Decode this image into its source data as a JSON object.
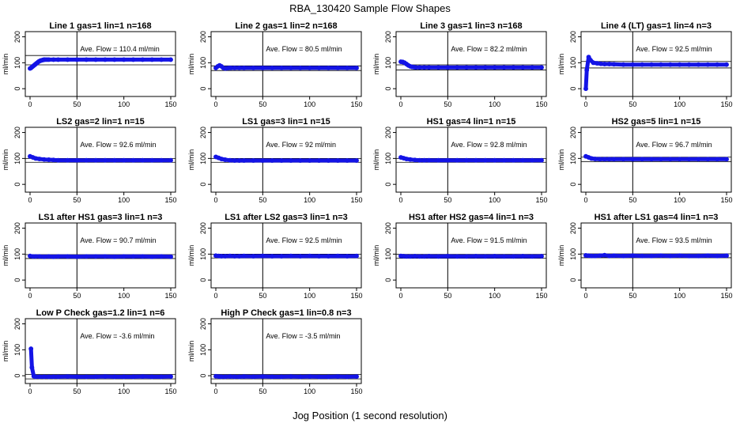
{
  "figure": {
    "title": "RBA_130420  Sample Flow Shapes",
    "xlabel": "Jog Position (1 second resolution)"
  },
  "chart_data": [
    {
      "type": "scatter",
      "title": "Line 1 gas=1 lin=1 n=168",
      "ylabel": "ml/min",
      "xlim": [
        0,
        150
      ],
      "ylim": [
        -30,
        220
      ],
      "xticks": [
        0,
        50,
        100,
        150
      ],
      "yticks": [
        0,
        100,
        200
      ],
      "vline": 50,
      "hlines": [
        92,
        128
      ],
      "annotation": "Ave. Flow =  110.4  ml/min",
      "series": [
        {
          "x": [
            0,
            1,
            2,
            3,
            4,
            5,
            6,
            7,
            8,
            9,
            10,
            11,
            12,
            13,
            14,
            15,
            16,
            18,
            20,
            25,
            30,
            40,
            50,
            60,
            70,
            80,
            90,
            100,
            110,
            120,
            130,
            140,
            150
          ],
          "y": [
            78,
            80,
            83,
            86,
            89,
            92,
            95,
            98,
            101,
            104,
            106,
            108,
            109,
            110,
            111,
            112,
            112,
            112,
            112,
            112,
            112,
            112,
            112,
            112,
            112,
            112,
            112,
            112,
            112,
            112,
            112,
            112,
            112
          ]
        }
      ]
    },
    {
      "type": "scatter",
      "title": "Line 2 gas=1 lin=2 n=168",
      "ylabel": "ml/min",
      "xlim": [
        0,
        150
      ],
      "ylim": [
        -30,
        220
      ],
      "xticks": [
        0,
        50,
        100,
        150
      ],
      "yticks": [
        0,
        100,
        200
      ],
      "vline": 50,
      "hlines": [
        70,
        88
      ],
      "annotation": "Ave. Flow =  80.5  ml/min",
      "series": [
        {
          "x": [
            0,
            2,
            4,
            6,
            8,
            10,
            12,
            14,
            16,
            20,
            25,
            30,
            40,
            50,
            60,
            70,
            80,
            90,
            100,
            110,
            120,
            130,
            140,
            150
          ],
          "y": [
            80,
            86,
            90,
            86,
            80,
            78,
            79,
            80,
            80,
            80,
            80,
            80,
            80,
            80,
            80,
            80,
            80,
            80,
            80,
            80,
            80,
            80,
            80,
            80
          ]
        }
      ]
    },
    {
      "type": "scatter",
      "title": "Line 3 gas=1 lin=3 n=168",
      "ylabel": "ml/min",
      "xlim": [
        0,
        150
      ],
      "ylim": [
        -30,
        220
      ],
      "xticks": [
        0,
        50,
        100,
        150
      ],
      "yticks": [
        0,
        100,
        200
      ],
      "vline": 50,
      "hlines": [
        72,
        92
      ],
      "annotation": "Ave. Flow =  82.2  ml/min",
      "series": [
        {
          "x": [
            0,
            2,
            4,
            6,
            8,
            10,
            12,
            14,
            16,
            20,
            25,
            30,
            40,
            50,
            60,
            70,
            80,
            90,
            100,
            110,
            120,
            130,
            140,
            150
          ],
          "y": [
            104,
            103,
            100,
            95,
            90,
            86,
            84,
            83,
            82,
            82,
            82,
            82,
            82,
            82,
            82,
            82,
            82,
            82,
            82,
            82,
            82,
            82,
            82,
            82
          ]
        }
      ]
    },
    {
      "type": "scatter",
      "title": "Line 4 (LT) gas=1 lin=4 n=3",
      "ylabel": "ml/min",
      "xlim": [
        0,
        150
      ],
      "ylim": [
        -30,
        220
      ],
      "xticks": [
        0,
        50,
        100,
        150
      ],
      "yticks": [
        0,
        100,
        200
      ],
      "vline": 50,
      "hlines": [
        80,
        105
      ],
      "annotation": "Ave. Flow =  92.5  ml/min",
      "series": [
        {
          "x": [
            0,
            1,
            3,
            5,
            8,
            12,
            16,
            20,
            25,
            30,
            40,
            50,
            60,
            70,
            80,
            90,
            100,
            110,
            120,
            130,
            140,
            150
          ],
          "y": [
            0,
            72,
            122,
            110,
            100,
            98,
            96,
            95,
            95,
            94,
            93,
            93,
            93,
            93,
            93,
            93,
            93,
            93,
            93,
            93,
            93,
            93
          ]
        }
      ]
    },
    {
      "type": "scatter",
      "title": "LS2 gas=2 lin=1 n=15",
      "ylabel": "ml/min",
      "xlim": [
        0,
        150
      ],
      "ylim": [
        -30,
        220
      ],
      "xticks": [
        0,
        50,
        100,
        150
      ],
      "yticks": [
        0,
        100,
        200
      ],
      "vline": 50,
      "hlines": [
        85,
        100
      ],
      "annotation": "Ave. Flow =  92.6  ml/min",
      "series": [
        {
          "x": [
            0,
            3,
            6,
            10,
            15,
            20,
            25,
            30,
            40,
            50,
            60,
            70,
            80,
            90,
            100,
            110,
            120,
            130,
            140,
            150
          ],
          "y": [
            108,
            104,
            100,
            98,
            96,
            95,
            94,
            93,
            93,
            93,
            93,
            93,
            93,
            93,
            93,
            93,
            93,
            93,
            93,
            93
          ]
        }
      ]
    },
    {
      "type": "scatter",
      "title": "LS1 gas=3 lin=1 n=15",
      "ylabel": "ml/min",
      "xlim": [
        0,
        150
      ],
      "ylim": [
        -30,
        220
      ],
      "xticks": [
        0,
        50,
        100,
        150
      ],
      "yticks": [
        0,
        100,
        200
      ],
      "vline": 50,
      "hlines": [
        85,
        100
      ],
      "annotation": "Ave. Flow =  92  ml/min",
      "series": [
        {
          "x": [
            0,
            3,
            6,
            10,
            15,
            20,
            25,
            30,
            40,
            50,
            60,
            70,
            80,
            90,
            100,
            110,
            120,
            130,
            140,
            150
          ],
          "y": [
            106,
            102,
            98,
            95,
            93,
            92,
            92,
            92,
            92,
            92,
            92,
            92,
            92,
            92,
            92,
            92,
            92,
            92,
            92,
            92
          ]
        }
      ]
    },
    {
      "type": "scatter",
      "title": "HS1 gas=4 lin=1 n=15",
      "ylabel": "ml/min",
      "xlim": [
        0,
        150
      ],
      "ylim": [
        -30,
        220
      ],
      "xticks": [
        0,
        50,
        100,
        150
      ],
      "yticks": [
        0,
        100,
        200
      ],
      "vline": 50,
      "hlines": [
        85,
        100
      ],
      "annotation": "Ave. Flow =  92.8  ml/min",
      "series": [
        {
          "x": [
            0,
            3,
            6,
            10,
            15,
            20,
            25,
            30,
            40,
            50,
            60,
            70,
            80,
            90,
            100,
            110,
            120,
            130,
            140,
            150
          ],
          "y": [
            104,
            101,
            98,
            96,
            94,
            93,
            93,
            93,
            93,
            93,
            93,
            93,
            93,
            93,
            93,
            93,
            93,
            93,
            93,
            93
          ]
        }
      ]
    },
    {
      "type": "scatter",
      "title": "HS2 gas=5 lin=1 n=15",
      "ylabel": "ml/min",
      "xlim": [
        0,
        150
      ],
      "ylim": [
        -30,
        220
      ],
      "xticks": [
        0,
        50,
        100,
        150
      ],
      "yticks": [
        0,
        100,
        200
      ],
      "vline": 50,
      "hlines": [
        88,
        105
      ],
      "annotation": "Ave. Flow =  96.7  ml/min",
      "series": [
        {
          "x": [
            0,
            3,
            6,
            10,
            15,
            20,
            25,
            30,
            40,
            50,
            60,
            70,
            80,
            90,
            100,
            110,
            120,
            130,
            140,
            150
          ],
          "y": [
            108,
            104,
            100,
            98,
            97,
            97,
            97,
            97,
            97,
            97,
            97,
            97,
            97,
            97,
            97,
            97,
            97,
            97,
            97,
            97
          ]
        }
      ]
    },
    {
      "type": "scatter",
      "title": "LS1 after HS1 gas=3 lin=1 n=3",
      "ylabel": "ml/min",
      "xlim": [
        0,
        150
      ],
      "ylim": [
        -30,
        220
      ],
      "xticks": [
        0,
        50,
        100,
        150
      ],
      "yticks": [
        0,
        100,
        200
      ],
      "vline": 50,
      "hlines": [
        83,
        98
      ],
      "annotation": "Ave. Flow =  90.7  ml/min",
      "series": [
        {
          "x": [
            0,
            3,
            6,
            10,
            15,
            20,
            25,
            30,
            40,
            50,
            60,
            70,
            80,
            90,
            100,
            110,
            120,
            130,
            140,
            150
          ],
          "y": [
            93,
            91,
            91,
            91,
            90,
            91,
            90,
            91,
            91,
            90,
            91,
            91,
            91,
            90,
            91,
            91,
            91,
            90,
            91,
            90
          ]
        }
      ]
    },
    {
      "type": "scatter",
      "title": "LS1 after LS2 gas=3 lin=1 n=3",
      "ylabel": "ml/min",
      "xlim": [
        0,
        150
      ],
      "ylim": [
        -30,
        220
      ],
      "xticks": [
        0,
        50,
        100,
        150
      ],
      "yticks": [
        0,
        100,
        200
      ],
      "vline": 50,
      "hlines": [
        85,
        100
      ],
      "annotation": "Ave. Flow =  92.5  ml/min",
      "series": [
        {
          "x": [
            0,
            3,
            6,
            10,
            15,
            20,
            25,
            30,
            40,
            50,
            60,
            70,
            80,
            90,
            100,
            110,
            120,
            130,
            140,
            150
          ],
          "y": [
            94,
            93,
            92,
            92,
            93,
            92,
            92,
            93,
            92,
            93,
            92,
            92,
            93,
            92,
            93,
            92,
            92,
            93,
            92,
            93
          ]
        }
      ]
    },
    {
      "type": "scatter",
      "title": "HS1 after HS2 gas=4 lin=1 n=3",
      "ylabel": "ml/min",
      "xlim": [
        0,
        150
      ],
      "ylim": [
        -30,
        220
      ],
      "xticks": [
        0,
        50,
        100,
        150
      ],
      "yticks": [
        0,
        100,
        200
      ],
      "vline": 50,
      "hlines": [
        84,
        99
      ],
      "annotation": "Ave. Flow =  91.5  ml/min",
      "series": [
        {
          "x": [
            0,
            3,
            6,
            10,
            15,
            20,
            25,
            30,
            40,
            50,
            60,
            70,
            80,
            90,
            100,
            110,
            120,
            130,
            140,
            150
          ],
          "y": [
            93,
            92,
            91,
            91,
            92,
            91,
            91,
            92,
            91,
            92,
            91,
            91,
            92,
            91,
            92,
            91,
            91,
            92,
            91,
            92
          ]
        }
      ]
    },
    {
      "type": "scatter",
      "title": "HS1 after LS1 gas=4 lin=1 n=3",
      "ylabel": "ml/min",
      "xlim": [
        0,
        150
      ],
      "ylim": [
        -30,
        220
      ],
      "xticks": [
        0,
        50,
        100,
        150
      ],
      "yticks": [
        0,
        100,
        200
      ],
      "vline": 50,
      "hlines": [
        86,
        101
      ],
      "annotation": "Ave. Flow =  93.5  ml/min",
      "series": [
        {
          "x": [
            0,
            3,
            6,
            10,
            15,
            20,
            25,
            30,
            40,
            50,
            60,
            70,
            80,
            90,
            100,
            110,
            120,
            130,
            140,
            150
          ],
          "y": [
            95,
            94,
            93,
            93,
            94,
            96,
            93,
            94,
            93,
            94,
            93,
            93,
            94,
            93,
            94,
            93,
            93,
            94,
            93,
            94
          ]
        }
      ]
    },
    {
      "type": "scatter",
      "title": "Low P Check gas=1.2 lin=1 n=6",
      "ylabel": "ml/min",
      "xlim": [
        0,
        150
      ],
      "ylim": [
        -30,
        220
      ],
      "xticks": [
        0,
        50,
        100,
        150
      ],
      "yticks": [
        0,
        100,
        200
      ],
      "vline": 50,
      "hlines": [
        -12,
        5
      ],
      "annotation": "Ave. Flow =  -3.6  ml/min",
      "series": [
        {
          "x": [
            1,
            2,
            4,
            6,
            10,
            15,
            20,
            25,
            30,
            40,
            50,
            60,
            70,
            80,
            90,
            100,
            110,
            120,
            130,
            140,
            150
          ],
          "y": [
            104,
            32,
            -2,
            -4,
            -4,
            -4,
            -4,
            -4,
            -4,
            -3,
            -4,
            -4,
            -4,
            -3,
            -4,
            -4,
            -4,
            -3,
            -4,
            -4,
            -3
          ]
        }
      ]
    },
    {
      "type": "scatter",
      "title": "High P Check gas=1 lin=0.8 n=3",
      "ylabel": "ml/min",
      "xlim": [
        0,
        150
      ],
      "ylim": [
        -30,
        220
      ],
      "xticks": [
        0,
        50,
        100,
        150
      ],
      "yticks": [
        0,
        100,
        200
      ],
      "vline": 50,
      "hlines": [
        -12,
        5
      ],
      "annotation": "Ave. Flow =  -3.5  ml/min",
      "series": [
        {
          "x": [
            0,
            3,
            6,
            10,
            15,
            20,
            25,
            30,
            40,
            50,
            60,
            70,
            80,
            90,
            100,
            110,
            120,
            130,
            140,
            150
          ],
          "y": [
            -2,
            -3,
            -4,
            -4,
            -3,
            -4,
            -4,
            -3,
            -4,
            -3,
            -4,
            -4,
            -3,
            -4,
            -3,
            -4,
            -4,
            -3,
            -4,
            -3
          ]
        }
      ]
    }
  ],
  "style": {
    "point_color": "#1414e6",
    "axis_color": "#000000"
  }
}
